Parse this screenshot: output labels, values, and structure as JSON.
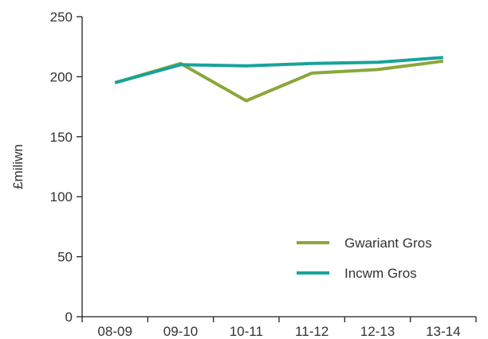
{
  "chart_data": {
    "type": "line",
    "title": "",
    "xlabel": "",
    "ylabel": "£miliwn",
    "categories": [
      "08-09",
      "09-10",
      "10-11",
      "11-12",
      "12-13",
      "13-14"
    ],
    "ylim": [
      0,
      250
    ],
    "yticks": [
      0,
      50,
      100,
      150,
      200,
      250
    ],
    "grid": false,
    "legend_position": "bottom-right",
    "series": [
      {
        "name": "Gwariant Gros",
        "color": "#8aa73a",
        "values": [
          195,
          211,
          180,
          203,
          206,
          213
        ]
      },
      {
        "name": "Incwm Gros",
        "color": "#17a39a",
        "values": [
          195,
          210,
          209,
          211,
          212,
          216
        ]
      }
    ]
  }
}
